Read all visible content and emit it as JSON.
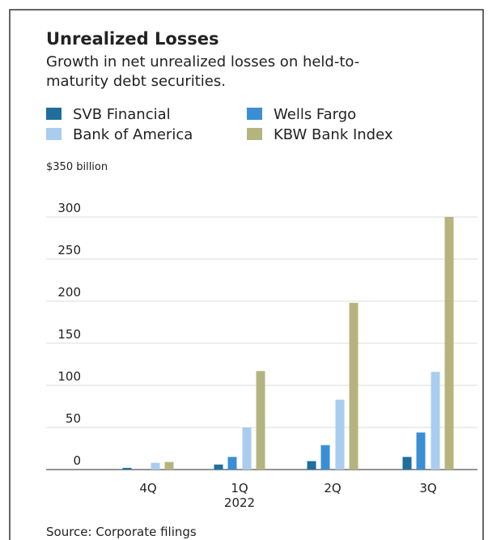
{
  "chart_data": {
    "type": "bar",
    "title": "Unrealized Losses",
    "subtitle": [
      "Growth in net unrealized losses on held-to-",
      "maturity debt securities."
    ],
    "categories": [
      "4Q",
      "1Q",
      "2Q",
      "3Q"
    ],
    "x_sublabels": [
      null,
      "2022",
      null,
      null
    ],
    "series": [
      {
        "name": "SVB Financial",
        "color": "#1f6e9c",
        "values": [
          2,
          6,
          10,
          15
        ]
      },
      {
        "name": "Wells Fargo",
        "color": "#3a8fd4",
        "values": [
          0,
          15,
          29,
          44
        ]
      },
      {
        "name": "Bank of America",
        "color": "#a9cdee",
        "values": [
          8,
          50,
          83,
          116
        ]
      },
      {
        "name": "KBW Bank Index",
        "color": "#b5b47f",
        "values": [
          9,
          117,
          198,
          300
        ]
      }
    ],
    "ylim": [
      0,
      350
    ],
    "yticks": [
      0,
      50,
      100,
      150,
      200,
      250,
      300,
      {
        "value": 350,
        "label": "$350 billion"
      }
    ],
    "grid": true,
    "source": "Source: Corporate filings"
  }
}
